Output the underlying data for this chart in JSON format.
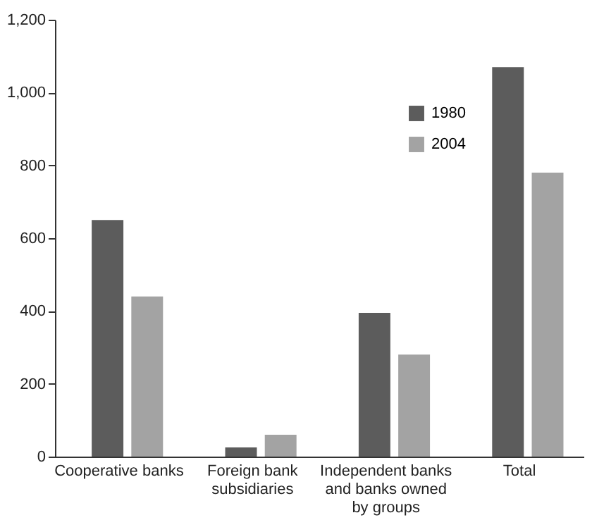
{
  "chart_data": {
    "type": "bar",
    "categories": [
      "Cooperative banks",
      "Foreign bank subsidiaries",
      "Independent banks and banks owned by groups",
      "Total"
    ],
    "series": [
      {
        "name": "1980",
        "color": "#5c5c5c",
        "values": [
          650,
          25,
          395,
          1070
        ]
      },
      {
        "name": "2004",
        "color": "#a3a3a3",
        "values": [
          440,
          60,
          280,
          780
        ]
      }
    ],
    "ylim": [
      0,
      1200
    ],
    "yticks": [
      0,
      200,
      400,
      600,
      800,
      {
        "value": 1000,
        "label": "1,000"
      },
      {
        "value": 1200,
        "label": "1,200"
      }
    ],
    "grid": false,
    "legend": "top right"
  }
}
